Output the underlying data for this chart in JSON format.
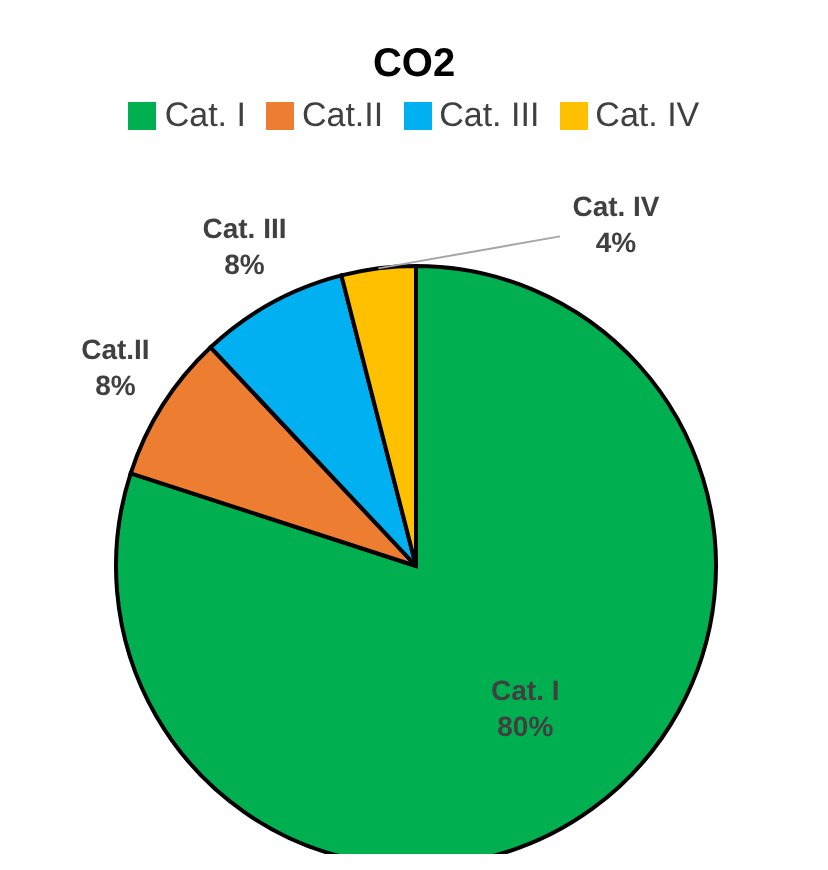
{
  "chart_data": {
    "type": "pie",
    "title": "CO2",
    "categories": [
      "Cat. I",
      "Cat.II",
      "Cat. III",
      "Cat. IV"
    ],
    "values": [
      80,
      8,
      8,
      4
    ],
    "colors": [
      "#00b050",
      "#ed7d31",
      "#00b0f0",
      "#ffc000"
    ],
    "value_labels": [
      "80%",
      "8%",
      "8%",
      "4%"
    ],
    "legend": "top"
  }
}
